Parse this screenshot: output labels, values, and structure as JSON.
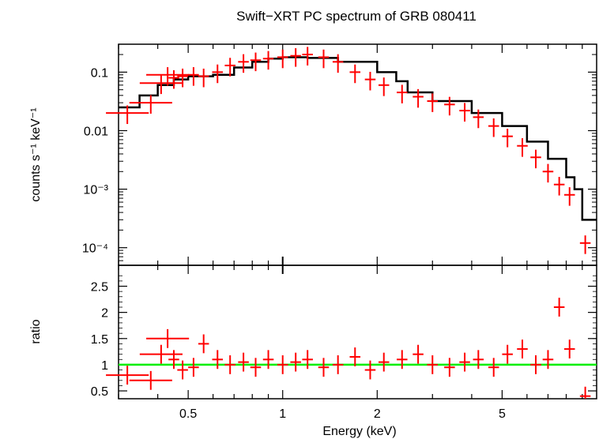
{
  "chart_data": [
    {
      "type": "scatter",
      "panel": "spectrum",
      "title": "Swift−XRT PC spectrum of GRB 080411",
      "xlabel": "",
      "ylabel": "counts s⁻¹ keV⁻¹",
      "xscale": "log",
      "yscale": "log",
      "xlim": [
        0.3,
        10.0
      ],
      "ylim": [
        5e-05,
        0.3
      ],
      "xticks": [
        "0.5",
        "1",
        "2",
        "5"
      ],
      "yticks": [
        "0.1",
        "0.01",
        "10⁻³",
        "10⁻⁴"
      ],
      "colors": {
        "data": "#ff0000",
        "model": "#000000"
      },
      "series": [
        {
          "kind": "data",
          "x": [
            0.32,
            0.38,
            0.41,
            0.43,
            0.45,
            0.48,
            0.52,
            0.56,
            0.62,
            0.68,
            0.75,
            0.82,
            0.9,
            1.0,
            1.1,
            1.2,
            1.35,
            1.5,
            1.7,
            1.9,
            2.1,
            2.4,
            2.7,
            3.0,
            3.4,
            3.8,
            4.2,
            4.7,
            5.2,
            5.8,
            6.4,
            7.0,
            7.6,
            8.2,
            9.2
          ],
          "y": [
            0.02,
            0.03,
            0.065,
            0.09,
            0.08,
            0.085,
            0.09,
            0.085,
            0.1,
            0.13,
            0.15,
            0.16,
            0.17,
            0.18,
            0.19,
            0.2,
            0.18,
            0.15,
            0.1,
            0.075,
            0.06,
            0.045,
            0.038,
            0.032,
            0.028,
            0.022,
            0.017,
            0.012,
            0.008,
            0.0055,
            0.0035,
            0.002,
            0.0012,
            0.0008,
            0.00012
          ]
        },
        {
          "kind": "model",
          "x": [
            0.3,
            0.35,
            0.4,
            0.45,
            0.5,
            0.6,
            0.7,
            0.8,
            0.9,
            1.0,
            1.2,
            1.5,
            2.0,
            2.3,
            2.5,
            3.0,
            4.0,
            5.0,
            6.0,
            7.0,
            8.0,
            8.5,
            9.0,
            10.0
          ],
          "y": [
            0.025,
            0.04,
            0.06,
            0.075,
            0.085,
            0.09,
            0.12,
            0.15,
            0.17,
            0.18,
            0.175,
            0.15,
            0.1,
            0.07,
            0.045,
            0.032,
            0.02,
            0.012,
            0.0065,
            0.0033,
            0.0016,
            0.001,
            0.0003,
            0.0003
          ]
        }
      ]
    },
    {
      "type": "scatter",
      "panel": "ratio",
      "title": "",
      "xlabel": "Energy (keV)",
      "ylabel": "ratio",
      "xscale": "log",
      "xlim": [
        0.3,
        10.0
      ],
      "ylim": [
        0.35,
        2.9
      ],
      "xticks": [
        "0.5",
        "1",
        "2",
        "5"
      ],
      "yticks": [
        "0.5",
        "1",
        "1.5",
        "2",
        "2.5"
      ],
      "reference_line": 1.0,
      "colors": {
        "data": "#ff0000",
        "reference": "#00ee00"
      },
      "series": [
        {
          "kind": "data",
          "x": [
            0.32,
            0.38,
            0.41,
            0.43,
            0.45,
            0.48,
            0.52,
            0.56,
            0.62,
            0.68,
            0.75,
            0.82,
            0.9,
            1.0,
            1.1,
            1.2,
            1.35,
            1.5,
            1.7,
            1.9,
            2.1,
            2.4,
            2.7,
            3.0,
            3.4,
            3.8,
            4.2,
            4.7,
            5.2,
            5.8,
            6.4,
            7.0,
            7.6,
            8.2,
            9.2
          ],
          "y": [
            0.8,
            0.7,
            1.2,
            1.5,
            1.1,
            0.9,
            0.95,
            1.4,
            1.1,
            1.0,
            1.05,
            0.95,
            1.1,
            1.0,
            1.05,
            1.1,
            0.95,
            1.0,
            1.15,
            0.9,
            1.05,
            1.1,
            1.2,
            1.0,
            0.95,
            1.05,
            1.1,
            0.95,
            1.2,
            1.3,
            1.0,
            1.1,
            2.1,
            1.3,
            0.4
          ]
        }
      ]
    }
  ]
}
